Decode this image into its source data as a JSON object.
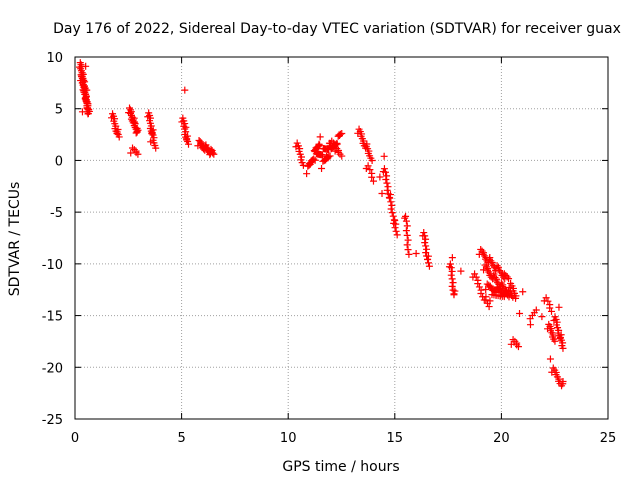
{
  "chart_data": {
    "type": "scatter",
    "title": "Day 176 of 2022, Sidereal Day-to-day VTEC variation (SDTVAR) for receiver guax",
    "xlabel": "GPS time / hours",
    "ylabel": "SDTVAR / TECUs",
    "xlim": [
      0,
      25
    ],
    "ylim": [
      -25,
      10
    ],
    "xticks": [
      0,
      5,
      10,
      15,
      20,
      25
    ],
    "yticks": [
      -25,
      -20,
      -15,
      -10,
      -5,
      0,
      5,
      10
    ],
    "grid": true,
    "marker": "+",
    "colors": {
      "marker": "#ff0000",
      "grid": "#a0a0a0",
      "axis": "#000000"
    },
    "series": [
      {
        "name": "SDTVAR",
        "segments": [
          {
            "x": [
              0.25,
              0.65
            ],
            "y": [
              9.3,
              4.4
            ],
            "n": 40
          },
          {
            "x": [
              0.3,
              0.6
            ],
            "y": [
              8.0,
              5.2
            ],
            "n": 20
          },
          {
            "x": [
              1.75,
              2.05
            ],
            "y": [
              4.4,
              2.2
            ],
            "n": 14
          },
          {
            "x": [
              2.55,
              2.95
            ],
            "y": [
              4.9,
              2.6
            ],
            "n": 22
          },
          {
            "x": [
              2.65,
              2.95
            ],
            "y": [
              1.0,
              0.6
            ],
            "n": 6
          },
          {
            "x": [
              3.45,
              3.75
            ],
            "y": [
              4.5,
              1.4
            ],
            "n": 18
          },
          {
            "x": [
              5.05,
              5.3
            ],
            "y": [
              4.0,
              1.5
            ],
            "n": 14
          },
          {
            "x": [
              5.8,
              6.5
            ],
            "y": [
              1.7,
              0.6
            ],
            "n": 24
          },
          {
            "x": [
              10.4,
              10.7
            ],
            "y": [
              1.6,
              -0.2
            ],
            "n": 10
          },
          {
            "x": [
              10.9,
              11.5
            ],
            "y": [
              -1.0,
              2.0
            ],
            "n": 20
          },
          {
            "x": [
              11.3,
              12.0
            ],
            "y": [
              0.3,
              1.5
            ],
            "n": 22
          },
          {
            "x": [
              11.6,
              12.5
            ],
            "y": [
              -0.5,
              2.6
            ],
            "n": 24
          },
          {
            "x": [
              12.0,
              12.5
            ],
            "y": [
              1.7,
              0.7
            ],
            "n": 10
          },
          {
            "x": [
              13.3,
              13.9
            ],
            "y": [
              2.9,
              0.2
            ],
            "n": 18
          },
          {
            "x": [
              13.7,
              14.0
            ],
            "y": [
              -0.5,
              -2.0
            ],
            "n": 6
          },
          {
            "x": [
              14.5,
              15.1
            ],
            "y": [
              -0.8,
              -7.2
            ],
            "n": 24
          },
          {
            "x": [
              15.5,
              15.65
            ],
            "y": [
              -5.3,
              -8.8
            ],
            "n": 10
          },
          {
            "x": [
              16.35,
              16.6
            ],
            "y": [
              -7.0,
              -10.3
            ],
            "n": 14
          },
          {
            "x": [
              17.6,
              17.8
            ],
            "y": [
              -10.0,
              -13.2
            ],
            "n": 12
          },
          {
            "x": [
              18.7,
              19.4
            ],
            "y": [
              -11.0,
              -14.2
            ],
            "n": 14
          },
          {
            "x": [
              19.0,
              20.3
            ],
            "y": [
              -8.8,
              -11.5
            ],
            "n": 32
          },
          {
            "x": [
              19.2,
              20.5
            ],
            "y": [
              -10.3,
              -13.3
            ],
            "n": 32
          },
          {
            "x": [
              19.3,
              20.2
            ],
            "y": [
              -12.2,
              -12.8
            ],
            "n": 20
          },
          {
            "x": [
              19.5,
              20.4
            ],
            "y": [
              -13.3,
              -12.7
            ],
            "n": 14
          },
          {
            "x": [
              20.4,
              20.7
            ],
            "y": [
              -12.0,
              -13.2
            ],
            "n": 8
          },
          {
            "x": [
              20.5,
              20.8
            ],
            "y": [
              -17.5,
              -18.0
            ],
            "n": 6
          },
          {
            "x": [
              21.4,
              21.6
            ],
            "y": [
              -15.6,
              -14.6
            ],
            "n": 4
          },
          {
            "x": [
              22.05,
              22.35
            ],
            "y": [
              -13.3,
              -14.6
            ],
            "n": 6
          },
          {
            "x": [
              22.2,
              22.5
            ],
            "y": [
              -16.0,
              -17.2
            ],
            "n": 10
          },
          {
            "x": [
              22.5,
              22.9
            ],
            "y": [
              -15.2,
              -18.1
            ],
            "n": 16
          },
          {
            "x": [
              22.4,
              22.9
            ],
            "y": [
              -20.2,
              -21.8
            ],
            "n": 12
          }
        ],
        "points": [
          [
            0.5,
            9.1
          ],
          [
            0.55,
            6.8
          ],
          [
            0.6,
            5.0
          ],
          [
            0.35,
            4.7
          ],
          [
            0.45,
            7.6
          ],
          [
            2.6,
            4.6
          ],
          [
            2.8,
            3.6
          ],
          [
            3.6,
            2.6
          ],
          [
            3.55,
            1.8
          ],
          [
            5.15,
            6.8
          ],
          [
            5.2,
            3.2
          ],
          [
            11.8,
            0.4
          ],
          [
            12.2,
            0.9
          ],
          [
            14.5,
            0.4
          ],
          [
            14.4,
            -3.2
          ],
          [
            14.3,
            -1.6
          ],
          [
            16.0,
            -9.0
          ],
          [
            17.7,
            -9.4
          ],
          [
            18.1,
            -10.7
          ],
          [
            21.0,
            -12.7
          ],
          [
            20.85,
            -14.8
          ],
          [
            21.35,
            -15.3
          ],
          [
            22.3,
            -19.2
          ],
          [
            21.9,
            -15.1
          ],
          [
            22.7,
            -14.2
          ]
        ]
      }
    ]
  }
}
